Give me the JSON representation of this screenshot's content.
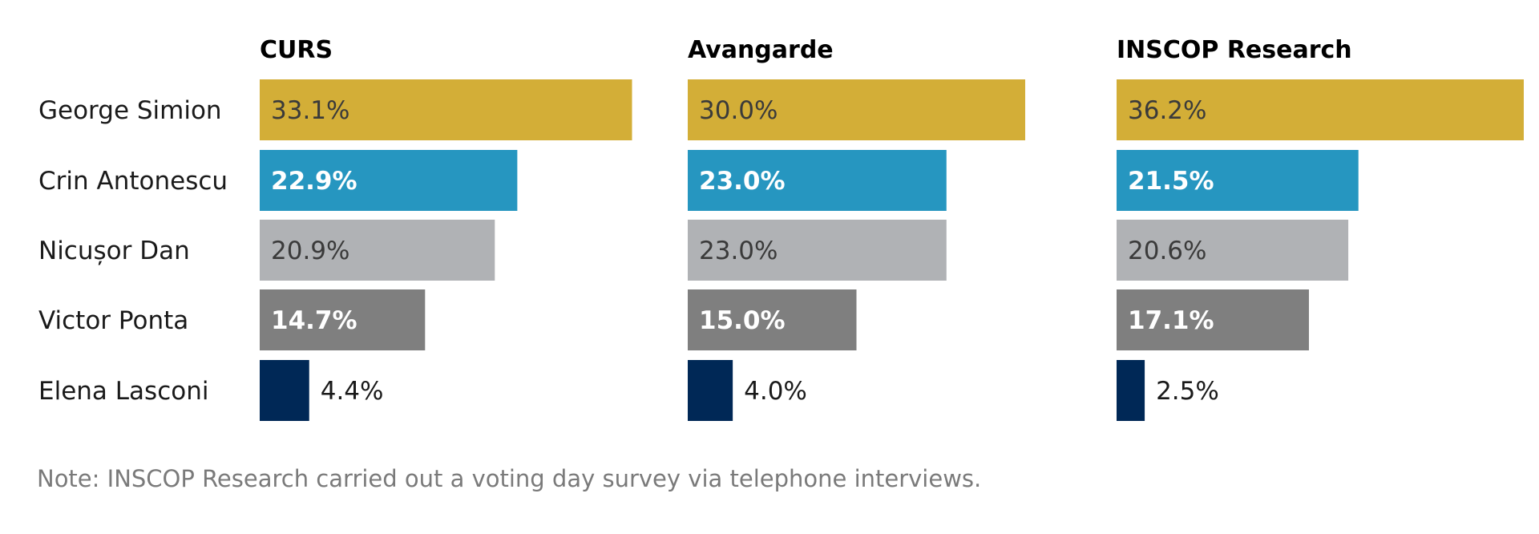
{
  "chart_data": {
    "type": "bar",
    "orientation": "horizontal",
    "candidates": [
      "George Simion",
      "Crin Antonescu",
      "Nicușor Dan",
      "Victor Ponta",
      "Elena Lasconi"
    ],
    "panels": [
      {
        "title": "CURS",
        "values": [
          33.1,
          22.9,
          20.9,
          14.7,
          4.4
        ],
        "labels": [
          "33.1%",
          "22.9%",
          "20.9%",
          "14.7%",
          "4.4%"
        ]
      },
      {
        "title": "Avangarde",
        "values": [
          30.0,
          23.0,
          23.0,
          15.0,
          4.0
        ],
        "labels": [
          "30.0%",
          "23.0%",
          "23.0%",
          "15.0%",
          "4.0%"
        ]
      },
      {
        "title": "INSCOP Research",
        "values": [
          36.2,
          21.5,
          20.6,
          17.1,
          2.5
        ],
        "labels": [
          "36.2%",
          "21.5%",
          "20.6%",
          "17.1%",
          "2.5%"
        ]
      }
    ],
    "colors": [
      "#d3ae37",
      "#2696c0",
      "#b0b2b5",
      "#7f7f7f",
      "#002856"
    ],
    "label_colors": [
      "#3a3a3a",
      "#ffffff",
      "#3a3a3a",
      "#ffffff",
      "#1a1a1a"
    ],
    "xlim": [
      0,
      36.2
    ],
    "note": "Note: INSCOP Research carried out a voting day survey via telephone interviews."
  }
}
